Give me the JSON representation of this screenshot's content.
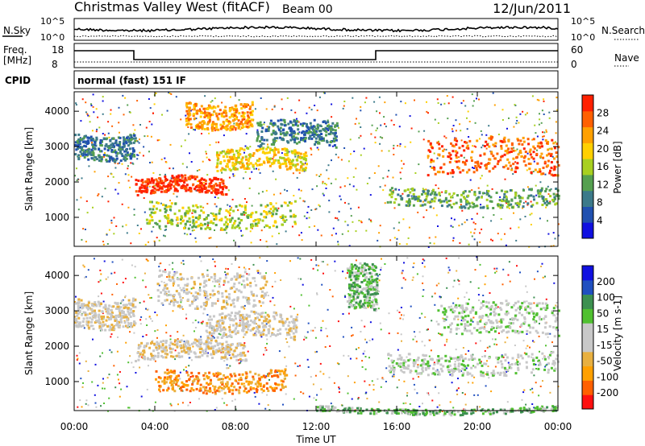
{
  "header": {
    "station": "Christmas Valley West (fitACF)",
    "beam": "Beam 00",
    "date": "12/Jun/2011"
  },
  "noise_panel": {
    "left_label": "N.Sky",
    "right_label": "N.Search",
    "left_ticks": [
      "10^5",
      "10^0"
    ],
    "right_ticks": [
      "10^5",
      "10^0"
    ]
  },
  "freq_panel": {
    "left_label_line1": "Freq.",
    "left_label_line2": "[MHz]",
    "right_label": "Nave",
    "left_ticks": [
      "18",
      "8"
    ],
    "right_ticks": [
      "60",
      "0"
    ]
  },
  "cpid_panel": {
    "label": "CPID",
    "text": "normal (fast) 151 IF"
  },
  "chart_data": [
    {
      "type": "heatmap",
      "name": "power",
      "xlabel": "Time UT",
      "ylabel": "Slant Range [km]",
      "x_ticks": [
        "00:00",
        "04:00",
        "08:00",
        "12:00",
        "16:00",
        "20:00",
        "00:00"
      ],
      "y_ticks": [
        "1000",
        "2000",
        "3000",
        "4000"
      ],
      "colorbar_label": "Power [dB]",
      "colorbar_ticks": [
        "4",
        "8",
        "12",
        "16",
        "20",
        "24",
        "28"
      ],
      "colors": [
        "#1010e0",
        "#2050b0",
        "#3c7a8a",
        "#55a050",
        "#a8d020",
        "#ffd000",
        "#ffa000",
        "#ff6000",
        "#ff2000"
      ],
      "echo_regions": [
        {
          "t0": 0.0,
          "t1": 3.0,
          "r0": 2700,
          "r1": 3400,
          "level": 2
        },
        {
          "t0": 3.0,
          "t1": 7.5,
          "r0": 1650,
          "r1": 2100,
          "level": 8
        },
        {
          "t0": 5.5,
          "t1": 8.8,
          "r0": 3600,
          "r1": 4300,
          "level": 6
        },
        {
          "t0": 7.0,
          "t1": 11.5,
          "r0": 2300,
          "r1": 2900,
          "level": 5
        },
        {
          "t0": 3.5,
          "t1": 11.0,
          "r0": 800,
          "r1": 1500,
          "level": 4
        },
        {
          "t0": 9.0,
          "t1": 13.0,
          "r0": 3000,
          "r1": 3700,
          "level": 2
        },
        {
          "t0": 15.5,
          "t1": 24.0,
          "r0": 1400,
          "r1": 1900,
          "level": 3
        },
        {
          "t0": 17.5,
          "t1": 24.0,
          "r0": 2200,
          "r1": 3200,
          "level": 7
        }
      ]
    },
    {
      "type": "heatmap",
      "name": "velocity",
      "xlabel": "Time UT",
      "ylabel": "Slant Range [km]",
      "x_ticks": [
        "00:00",
        "04:00",
        "08:00",
        "12:00",
        "16:00",
        "20:00",
        "00:00"
      ],
      "y_ticks": [
        "1000",
        "2000",
        "3000",
        "4000"
      ],
      "colorbar_label": "Velocity [m s-1]",
      "colorbar_ticks": [
        "-200",
        "-100",
        "-50",
        "-15",
        "15",
        "50",
        "100",
        "200"
      ],
      "colors": [
        "#ff1010",
        "#ff6000",
        "#ffa000",
        "#e8b040",
        "#c8c8c8",
        "#c8c8c8",
        "#50c030",
        "#3c9050",
        "#2050c0",
        "#1010e0"
      ],
      "echo_regions": [
        {
          "t0": 0.0,
          "t1": 3.0,
          "r0": 2600,
          "r1": 3400,
          "level": 4
        },
        {
          "t0": 3.0,
          "t1": 8.5,
          "r0": 1600,
          "r1": 2100,
          "level": 4
        },
        {
          "t0": 4.0,
          "t1": 9.5,
          "r0": 3200,
          "r1": 4200,
          "level": 4
        },
        {
          "t0": 6.5,
          "t1": 11.0,
          "r0": 2200,
          "r1": 2900,
          "level": 4
        },
        {
          "t0": 4.0,
          "t1": 10.5,
          "r0": 800,
          "r1": 1400,
          "level": 2
        },
        {
          "t0": 13.5,
          "t1": 15.0,
          "r0": 3000,
          "r1": 4300,
          "level": 6
        },
        {
          "t0": 15.5,
          "t1": 24.0,
          "r0": 1300,
          "r1": 1900,
          "level": 5
        },
        {
          "t0": 18.0,
          "t1": 24.0,
          "r0": 2300,
          "r1": 3200,
          "level": 5
        },
        {
          "t0": 12.0,
          "t1": 24.0,
          "r0": 200,
          "r1": 350,
          "level": 6
        }
      ]
    }
  ]
}
